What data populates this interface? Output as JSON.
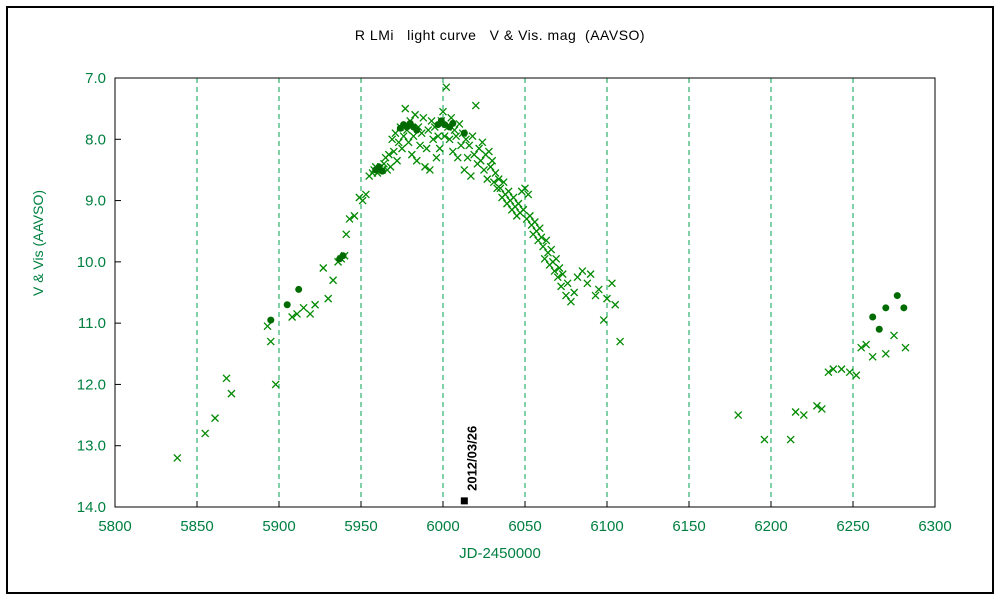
{
  "chart_data": {
    "type": "scatter",
    "title": "R LMi   light curve   V & Vis. mag  (AAVSO)",
    "xlabel": "JD-2450000",
    "ylabel": "V & Vis (AAVSO)",
    "xlim": [
      5800,
      6300
    ],
    "ylim": [
      7.0,
      14.0
    ],
    "y_axis_inverted": true,
    "grid": "vertical-dashed-only",
    "legend_position": "none",
    "xticks": [
      5800,
      5850,
      5900,
      5950,
      6000,
      6050,
      6100,
      6150,
      6200,
      6250,
      6300
    ],
    "xtick_labels": [
      "5800",
      "5850",
      "5900",
      "5950",
      "6000",
      "6050",
      "6100",
      "6150",
      "6200",
      "6250",
      "6300"
    ],
    "yticks": [
      7.0,
      8.0,
      9.0,
      10.0,
      11.0,
      12.0,
      13.0,
      14.0
    ],
    "ytick_labels": [
      "7.0",
      "8.0",
      "9.0",
      "10.0",
      "11.0",
      "12.0",
      "13.0",
      "14.0"
    ],
    "style": {
      "grid_color": "#00A050",
      "tick_label_color": "#008040",
      "axis_title_color": "#008040",
      "title_color": "#000000",
      "plot_border_color": "#000000",
      "background": "#FFFFFF"
    },
    "series": [
      {
        "name": "Vis",
        "marker": "x",
        "color": "#008A00",
        "points": [
          [
            5838,
            13.2
          ],
          [
            5855,
            12.8
          ],
          [
            5861,
            12.55
          ],
          [
            5868,
            11.9
          ],
          [
            5871,
            12.15
          ],
          [
            5893,
            11.05
          ],
          [
            5895,
            11.3
          ],
          [
            5898,
            12.0
          ],
          [
            5908,
            10.9
          ],
          [
            5911,
            10.85
          ],
          [
            5915,
            10.75
          ],
          [
            5919,
            10.85
          ],
          [
            5922,
            10.7
          ],
          [
            5927,
            10.1
          ],
          [
            5930,
            10.6
          ],
          [
            5933,
            10.3
          ],
          [
            5936,
            10.0
          ],
          [
            5938,
            9.95
          ],
          [
            5940,
            9.9
          ],
          [
            5941,
            9.55
          ],
          [
            5943,
            9.3
          ],
          [
            5946,
            9.25
          ],
          [
            5949,
            8.95
          ],
          [
            5951,
            9.0
          ],
          [
            5953,
            8.9
          ],
          [
            5955,
            8.6
          ],
          [
            5957,
            8.55
          ],
          [
            5958,
            8.5
          ],
          [
            5959,
            8.45
          ],
          [
            5960,
            8.55
          ],
          [
            5961,
            8.5
          ],
          [
            5962,
            8.45
          ],
          [
            5963,
            8.5
          ],
          [
            5964,
            8.4
          ],
          [
            5965,
            8.3
          ],
          [
            5966,
            8.5
          ],
          [
            5967,
            8.25
          ],
          [
            5968,
            8.45
          ],
          [
            5969,
            8.0
          ],
          [
            5970,
            8.2
          ],
          [
            5971,
            7.9
          ],
          [
            5972,
            8.35
          ],
          [
            5973,
            8.05
          ],
          [
            5974,
            7.8
          ],
          [
            5975,
            8.15
          ],
          [
            5976,
            7.95
          ],
          [
            5977,
            7.5
          ],
          [
            5978,
            7.85
          ],
          [
            5979,
            8.05
          ],
          [
            5980,
            7.7
          ],
          [
            5981,
            8.25
          ],
          [
            5982,
            7.95
          ],
          [
            5983,
            7.6
          ],
          [
            5984,
            8.35
          ],
          [
            5985,
            7.8
          ],
          [
            5986,
            8.1
          ],
          [
            5987,
            7.9
          ],
          [
            5988,
            7.65
          ],
          [
            5989,
            8.45
          ],
          [
            5990,
            8.15
          ],
          [
            5991,
            7.85
          ],
          [
            5992,
            8.5
          ],
          [
            5993,
            7.7
          ],
          [
            5994,
            8.0
          ],
          [
            5995,
            7.8
          ],
          [
            5996,
            8.3
          ],
          [
            5997,
            7.95
          ],
          [
            5998,
            8.15
          ],
          [
            5999,
            7.7
          ],
          [
            6000,
            7.55
          ],
          [
            6001,
            7.95
          ],
          [
            6002,
            7.15
          ],
          [
            6003,
            7.8
          ],
          [
            6004,
            8.0
          ],
          [
            6005,
            7.65
          ],
          [
            6006,
            8.2
          ],
          [
            6007,
            7.85
          ],
          [
            6008,
            7.95
          ],
          [
            6009,
            8.3
          ],
          [
            6010,
            7.75
          ],
          [
            6011,
            8.1
          ],
          [
            6012,
            7.9
          ],
          [
            6013,
            8.5
          ],
          [
            6014,
            8.0
          ],
          [
            6015,
            8.3
          ],
          [
            6016,
            8.1
          ],
          [
            6017,
            8.6
          ],
          [
            6018,
            7.95
          ],
          [
            6019,
            8.25
          ],
          [
            6020,
            7.45
          ],
          [
            6021,
            8.4
          ],
          [
            6022,
            8.15
          ],
          [
            6023,
            8.35
          ],
          [
            6024,
            8.05
          ],
          [
            6025,
            8.5
          ],
          [
            6026,
            8.25
          ],
          [
            6027,
            8.65
          ],
          [
            6028,
            8.2
          ],
          [
            6029,
            8.45
          ],
          [
            6030,
            8.35
          ],
          [
            6031,
            8.7
          ],
          [
            6032,
            8.55
          ],
          [
            6033,
            8.8
          ],
          [
            6034,
            8.65
          ],
          [
            6035,
            8.8
          ],
          [
            6036,
            8.95
          ],
          [
            6037,
            8.7
          ],
          [
            6038,
            8.9
          ],
          [
            6039,
            9.05
          ],
          [
            6040,
            8.85
          ],
          [
            6041,
            9.0
          ],
          [
            6042,
            9.15
          ],
          [
            6043,
            8.95
          ],
          [
            6044,
            9.1
          ],
          [
            6045,
            9.25
          ],
          [
            6046,
            9.05
          ],
          [
            6047,
            9.2
          ],
          [
            6048,
            8.85
          ],
          [
            6049,
            9.15
          ],
          [
            6050,
            8.8
          ],
          [
            6051,
            9.3
          ],
          [
            6052,
            8.9
          ],
          [
            6053,
            9.25
          ],
          [
            6054,
            9.4
          ],
          [
            6055,
            9.55
          ],
          [
            6056,
            9.35
          ],
          [
            6057,
            9.5
          ],
          [
            6058,
            9.65
          ],
          [
            6059,
            9.45
          ],
          [
            6060,
            9.6
          ],
          [
            6061,
            9.75
          ],
          [
            6062,
            9.95
          ],
          [
            6063,
            9.65
          ],
          [
            6064,
            9.85
          ],
          [
            6065,
            10.05
          ],
          [
            6066,
            9.8
          ],
          [
            6067,
            10.0
          ],
          [
            6068,
            10.15
          ],
          [
            6069,
            9.95
          ],
          [
            6070,
            10.25
          ],
          [
            6071,
            10.1
          ],
          [
            6072,
            10.4
          ],
          [
            6073,
            10.2
          ],
          [
            6075,
            10.55
          ],
          [
            6076,
            10.35
          ],
          [
            6078,
            10.65
          ],
          [
            6080,
            10.5
          ],
          [
            6082,
            10.25
          ],
          [
            6085,
            10.15
          ],
          [
            6088,
            10.35
          ],
          [
            6090,
            10.2
          ],
          [
            6093,
            10.55
          ],
          [
            6095,
            10.45
          ],
          [
            6098,
            10.95
          ],
          [
            6100,
            10.6
          ],
          [
            6103,
            10.35
          ],
          [
            6105,
            10.7
          ],
          [
            6108,
            11.3
          ],
          [
            6180,
            12.5
          ],
          [
            6196,
            12.9
          ],
          [
            6212,
            12.9
          ],
          [
            6215,
            12.45
          ],
          [
            6220,
            12.5
          ],
          [
            6228,
            12.35
          ],
          [
            6231,
            12.4
          ],
          [
            6235,
            11.8
          ],
          [
            6238,
            11.75
          ],
          [
            6243,
            11.75
          ],
          [
            6248,
            11.8
          ],
          [
            6252,
            11.85
          ],
          [
            6255,
            11.4
          ],
          [
            6258,
            11.35
          ],
          [
            6262,
            11.55
          ],
          [
            6270,
            11.5
          ],
          [
            6275,
            11.2
          ],
          [
            6282,
            11.4
          ]
        ]
      },
      {
        "name": "V",
        "marker": "filled-circle",
        "color": "#006B00",
        "points": [
          [
            5895,
            10.95
          ],
          [
            5905,
            10.7
          ],
          [
            5912,
            10.45
          ],
          [
            5937,
            9.95
          ],
          [
            5939,
            9.9
          ],
          [
            5959,
            8.5
          ],
          [
            5961,
            8.45
          ],
          [
            5963,
            8.52
          ],
          [
            5974,
            7.82
          ],
          [
            5976,
            7.76
          ],
          [
            5978,
            7.8
          ],
          [
            5980,
            7.74
          ],
          [
            5982,
            7.8
          ],
          [
            5984,
            7.85
          ],
          [
            5997,
            7.76
          ],
          [
            5999,
            7.7
          ],
          [
            6001,
            7.76
          ],
          [
            6004,
            7.8
          ],
          [
            6006,
            7.74
          ],
          [
            6013,
            7.9
          ],
          [
            6262,
            10.9
          ],
          [
            6266,
            11.1
          ],
          [
            6270,
            10.75
          ],
          [
            6277,
            10.55
          ],
          [
            6281,
            10.75
          ]
        ]
      }
    ],
    "annotations": [
      {
        "label": "2012/03/26",
        "marker": "filled-square",
        "color": "#000000",
        "x": 6013,
        "y": 13.9
      }
    ]
  }
}
